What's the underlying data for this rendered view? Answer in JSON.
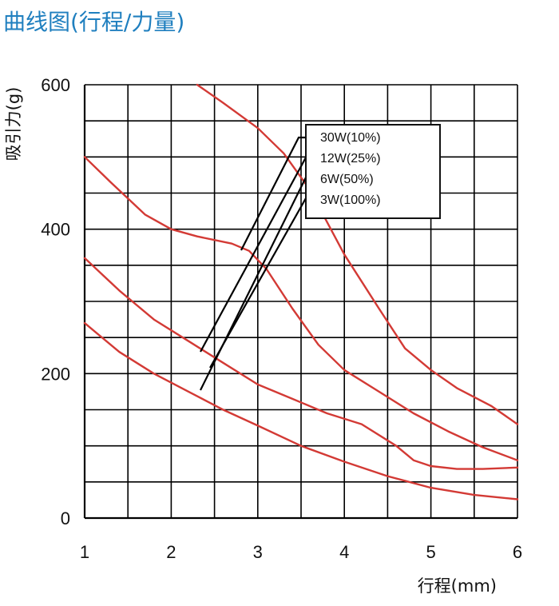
{
  "title": "曲线图(行程/力量)",
  "chart_data": {
    "type": "line",
    "xlabel": "行程(mm)",
    "ylabel": "吸引力(g)",
    "xlim": [
      1,
      6
    ],
    "ylim": [
      0,
      600
    ],
    "xticks": [
      "1",
      "2",
      "3",
      "4",
      "5",
      "6"
    ],
    "yticks": [
      "0",
      "200",
      "400",
      "600"
    ],
    "grid": true,
    "legend_position": "top-right",
    "colors": {
      "line": "#d33a35",
      "grid": "#000000",
      "leader": "#000000"
    },
    "series": [
      {
        "name": "30W(10%)",
        "x": [
          2.3,
          2.6,
          3.0,
          3.3,
          3.6,
          4.0,
          4.4,
          4.7,
          5.0,
          5.3,
          5.7,
          6.0
        ],
        "y": [
          600,
          575,
          540,
          505,
          455,
          365,
          290,
          235,
          205,
          180,
          155,
          130
        ]
      },
      {
        "name": "12W(25%)",
        "x": [
          1.0,
          1.3,
          1.7,
          2.0,
          2.3,
          2.7,
          2.9,
          3.1,
          3.4,
          3.7,
          4.0,
          4.4,
          4.8,
          5.2,
          5.6,
          6.0
        ],
        "y": [
          500,
          465,
          420,
          400,
          390,
          380,
          370,
          345,
          290,
          240,
          205,
          175,
          145,
          120,
          98,
          80
        ]
      },
      {
        "name": "6W(50%)",
        "x": [
          1.0,
          1.4,
          1.8,
          2.2,
          2.6,
          3.0,
          3.4,
          3.8,
          4.2,
          4.6,
          4.8,
          5.0,
          5.3,
          5.6,
          6.0
        ],
        "y": [
          360,
          315,
          275,
          245,
          215,
          185,
          165,
          145,
          130,
          100,
          80,
          72,
          68,
          68,
          70
        ]
      },
      {
        "name": "3W(100%)",
        "x": [
          1.0,
          1.4,
          1.8,
          2.2,
          2.6,
          3.0,
          3.5,
          4.0,
          4.5,
          5.0,
          5.5,
          6.0
        ],
        "y": [
          270,
          230,
          200,
          175,
          150,
          128,
          100,
          78,
          58,
          42,
          32,
          26
        ]
      }
    ]
  }
}
